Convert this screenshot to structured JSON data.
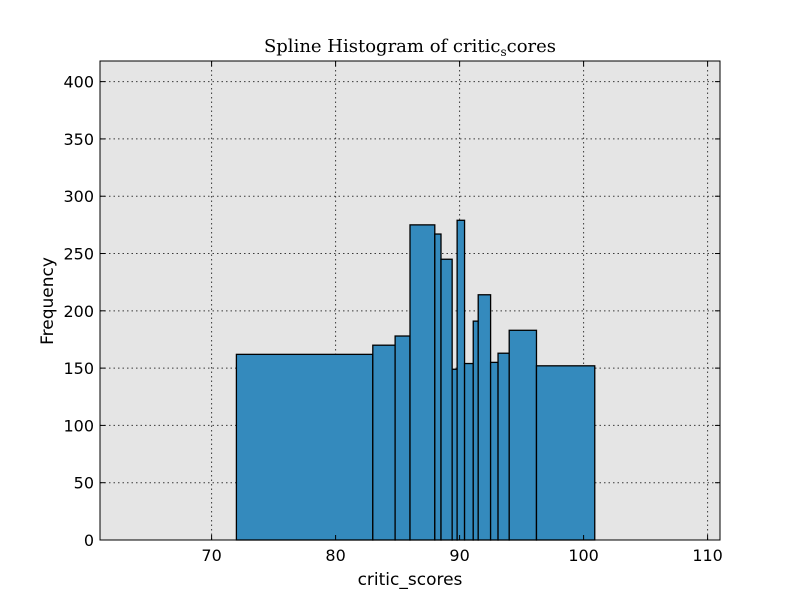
{
  "chart_data": {
    "type": "bar",
    "title": "Spline Histogram of critic",
    "title_subscript": "s",
    "title_suffix": "cores",
    "xlabel": "critic_scores",
    "ylabel": "Frequency",
    "xlim": [
      61,
      111
    ],
    "ylim": [
      0,
      418
    ],
    "xticks": [
      70,
      80,
      90,
      100,
      110
    ],
    "yticks": [
      0,
      50,
      100,
      150,
      200,
      250,
      300,
      350,
      400
    ],
    "grid": true,
    "colors": {
      "bar_fill": "#348abd",
      "bar_edge": "#000000",
      "plot_background": "#e5e5e5"
    },
    "bins": [
      {
        "x0": 72.0,
        "x1": 83.0,
        "value": 162
      },
      {
        "x0": 83.0,
        "x1": 84.8,
        "value": 170
      },
      {
        "x0": 84.8,
        "x1": 86.0,
        "value": 178
      },
      {
        "x0": 86.0,
        "x1": 88.0,
        "value": 275
      },
      {
        "x0": 88.0,
        "x1": 88.5,
        "value": 267
      },
      {
        "x0": 88.5,
        "x1": 89.4,
        "value": 245
      },
      {
        "x0": 89.4,
        "x1": 89.8,
        "value": 149
      },
      {
        "x0": 89.8,
        "x1": 90.4,
        "value": 279
      },
      {
        "x0": 90.4,
        "x1": 91.1,
        "value": 154
      },
      {
        "x0": 91.1,
        "x1": 91.5,
        "value": 191
      },
      {
        "x0": 91.5,
        "x1": 92.5,
        "value": 214
      },
      {
        "x0": 92.5,
        "x1": 93.1,
        "value": 155
      },
      {
        "x0": 93.1,
        "x1": 94.0,
        "value": 163
      },
      {
        "x0": 94.0,
        "x1": 96.2,
        "value": 183
      },
      {
        "x0": 96.2,
        "x1": 100.9,
        "value": 152
      }
    ]
  }
}
